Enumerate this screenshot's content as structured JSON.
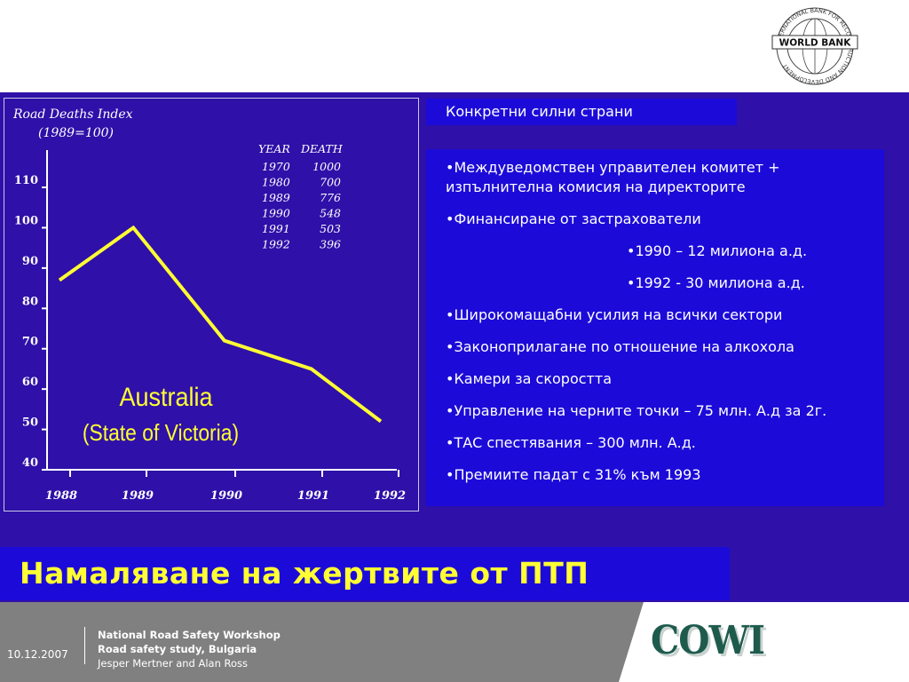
{
  "header": {
    "logo_name": "WORLD BANK",
    "logo_ring_text": "INTERNATIONAL BANK FOR RECONSTRUCTION AND DEVELOPMENT"
  },
  "chart_data": {
    "type": "line",
    "title": "Road Deaths Index",
    "subtitle": "(1989=100)",
    "xlabel": "",
    "ylabel": "",
    "x_ticks": [
      "1988",
      "1989",
      "1990",
      "1991",
      "1992"
    ],
    "y_ticks": [
      "110",
      "100",
      "90",
      "80",
      "70",
      "60",
      "50",
      "40"
    ],
    "ylim": [
      40,
      110
    ],
    "xlim": [
      1988,
      1992
    ],
    "grid": false,
    "series": [
      {
        "color": "#ffff33",
        "x": [
          1988.1,
          1988.95,
          1990,
          1991,
          1991.8
        ],
        "values": [
          87,
          100,
          72,
          65,
          52
        ]
      }
    ],
    "annotation_title": "Australia",
    "annotation_subtitle": "(State of Victoria)",
    "table": {
      "headers": [
        "YEAR",
        "DEATH"
      ],
      "rows": [
        [
          "1970",
          "1000"
        ],
        [
          "1980",
          "700"
        ],
        [
          "1989",
          "776"
        ],
        [
          "1990",
          "548"
        ],
        [
          "1991",
          "503"
        ],
        [
          "1992",
          "396"
        ]
      ]
    }
  },
  "panel": {
    "heading": "Конкретни силни страни",
    "bullets": [
      {
        "text": "•Междуведомствен управителен комитет + изпълнителна комисия на директорите",
        "sub": false
      },
      {
        "text": "•Финансиране от застрахователи",
        "sub": false
      },
      {
        "text": "•1990 – 12 милиона а.д.",
        "sub": true
      },
      {
        "text": "•1992 - 30 милиона а.д.",
        "sub": true
      },
      {
        "text": "•Широкомащабни усилия на всички сектори",
        "sub": false
      },
      {
        "text": "•Законоприлагане по отношение на алкохола",
        "sub": false
      },
      {
        "text": "•Камери за скоростта",
        "sub": false
      },
      {
        "text": "•Управление на черните точки – 75 млн. А.д за 2г.",
        "sub": false
      },
      {
        "text": "•ТАС спестявания – 300 млн. А.д.",
        "sub": false
      },
      {
        "text": "•Премиите падат с 31% към 1993",
        "sub": false
      }
    ]
  },
  "slide_title": "Намаляване на жертвите от ПТП",
  "footer": {
    "date": "10.12.2007",
    "line1": "National Road Safety Workshop",
    "line2": "Road safety study, Bulgaria",
    "line3": "Jesper Mertner and Alan Ross",
    "brand": "COWI"
  },
  "colors": {
    "background": "#2f10a8",
    "panel": "#1c0bd8",
    "title_yellow": "#ffff33",
    "footer_gray": "#808080",
    "cowi_green": "#1f5b4d"
  }
}
